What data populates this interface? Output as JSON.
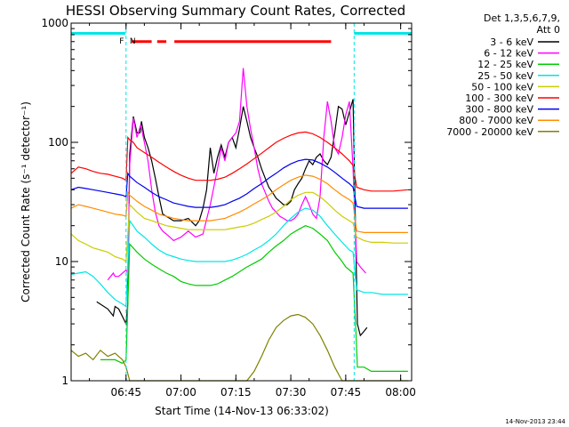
{
  "chart_data": {
    "type": "line",
    "title": "HESSI Observing Summary Count Rates, Corrected",
    "xlabel": "Start Time (14-Nov-13 06:33:02)",
    "ylabel": "Corrected Count Rate (s⁻¹ detector⁻¹)",
    "yscale": "log",
    "ylim": [
      1,
      1000
    ],
    "xlim_minutes": [
      -10.0,
      83.0
    ],
    "x_unit": "minutes after 06:40 UT",
    "xticks": [
      {
        "label": "06:45",
        "minutes": 5
      },
      {
        "label": "07:00",
        "minutes": 20
      },
      {
        "label": "07:15",
        "minutes": 35
      },
      {
        "label": "07:30",
        "minutes": 50
      },
      {
        "label": "07:45",
        "minutes": 65
      },
      {
        "label": "08:00",
        "minutes": 80
      }
    ],
    "yticks": [
      {
        "label": "1",
        "value": 1
      },
      {
        "label": "10",
        "value": 10
      },
      {
        "label": "100",
        "value": 100
      },
      {
        "label": "1000",
        "value": 1000
      }
    ],
    "grid": false,
    "legend_position": "right",
    "legend_header": [
      "Det 1,3,5,6,7,9,",
      "Att 0"
    ],
    "series": [
      {
        "name": "3 - 6 keV",
        "color": "#000000",
        "x": [
          -3,
          0,
          1.5,
          2,
          3,
          5,
          5.5,
          6,
          7,
          8,
          8.8,
          9.2,
          10,
          11,
          12,
          13,
          14,
          15,
          16,
          18,
          19,
          20,
          22,
          24,
          25,
          26,
          27,
          28,
          29,
          30,
          31,
          32,
          33,
          34,
          35,
          36,
          37,
          38,
          39,
          40,
          41,
          42,
          43,
          44,
          45,
          46,
          47,
          48,
          49,
          50,
          51,
          52,
          53,
          54,
          55,
          56,
          57,
          58,
          59,
          60,
          61,
          62,
          63,
          64,
          65,
          66,
          67,
          67.8,
          68.2,
          69,
          70,
          70.8
        ],
        "y": [
          4.6,
          4.0,
          3.5,
          4.2,
          4.0,
          3.0,
          4.5,
          80,
          165,
          120,
          120,
          150,
          110,
          90,
          70,
          50,
          35,
          25,
          24,
          22,
          22,
          22,
          23,
          20,
          22,
          28,
          40,
          90,
          55,
          75,
          95,
          75,
          100,
          110,
          90,
          130,
          200,
          150,
          110,
          90,
          75,
          60,
          50,
          42,
          38,
          34,
          32,
          30,
          30,
          32,
          40,
          45,
          50,
          60,
          70,
          65,
          75,
          80,
          70,
          65,
          75,
          120,
          200,
          190,
          140,
          180,
          230,
          12,
          3.0,
          2.4,
          2.6,
          2.8
        ]
      },
      {
        "name": "6 - 12 keV",
        "color": "#ff00ff",
        "x": [
          0,
          1.5,
          2,
          3,
          5,
          5.5,
          6,
          7,
          8,
          9,
          10,
          11,
          12,
          13,
          14,
          15,
          16,
          18,
          20,
          22,
          24,
          26,
          28,
          30,
          31,
          32,
          33,
          34,
          35,
          36,
          37,
          38,
          39,
          40,
          41,
          42,
          43,
          44,
          45,
          46,
          47,
          48,
          49,
          50,
          51,
          52,
          53,
          54,
          55,
          56,
          57,
          58,
          59,
          60,
          61,
          62,
          63,
          64,
          65,
          66,
          67,
          68,
          69,
          70.5
        ],
        "y": [
          7.0,
          8.0,
          7.5,
          7.5,
          8.5,
          8.0,
          65,
          160,
          110,
          140,
          100,
          70,
          40,
          26,
          20,
          18,
          17,
          15,
          16,
          18,
          16,
          17,
          30,
          60,
          90,
          70,
          100,
          110,
          120,
          150,
          420,
          200,
          130,
          90,
          60,
          45,
          38,
          32,
          28,
          26,
          24,
          23,
          22,
          22,
          23,
          25,
          30,
          35,
          30,
          25,
          23,
          35,
          110,
          220,
          150,
          90,
          80,
          110,
          170,
          220,
          60,
          10,
          9,
          8
        ]
      },
      {
        "name": "12 - 25 keV",
        "color": "#00cc00",
        "x": [
          -2,
          0,
          2,
          4,
          5,
          6,
          8,
          10,
          12,
          14,
          16,
          18,
          20,
          22,
          24,
          26,
          28,
          30,
          32,
          34,
          36,
          38,
          40,
          42,
          44,
          46,
          48,
          50,
          52,
          54,
          56,
          58,
          60,
          62,
          64,
          65,
          66,
          67,
          67.8,
          68.2,
          70,
          72,
          75,
          78,
          82
        ],
        "y": [
          1.5,
          1.5,
          1.5,
          1.4,
          1.5,
          14,
          12,
          10.5,
          9.5,
          8.7,
          8.0,
          7.5,
          6.8,
          6.5,
          6.3,
          6.3,
          6.3,
          6.5,
          7.0,
          7.5,
          8.2,
          9.0,
          9.7,
          10.5,
          12,
          13.5,
          15,
          17,
          18.5,
          20,
          19,
          17,
          15,
          12,
          10,
          9,
          8.5,
          8,
          2.5,
          1.3,
          1.3,
          1.2,
          1.2,
          1.2,
          1.2
        ]
      },
      {
        "name": "25 - 50 keV",
        "color": "#00e5e5",
        "x": [
          -10,
          -8,
          -6,
          -4,
          -2,
          0,
          2,
          4,
          5,
          6,
          8,
          10,
          12,
          14,
          16,
          18,
          20,
          22,
          24,
          26,
          28,
          30,
          32,
          34,
          36,
          38,
          40,
          42,
          44,
          46,
          48,
          50,
          52,
          54,
          56,
          58,
          60,
          62,
          64,
          66,
          67,
          68,
          70,
          72,
          75,
          78,
          82
        ],
        "y": [
          7.8,
          8.0,
          8.2,
          7.5,
          6.5,
          5.5,
          4.8,
          4.4,
          4.2,
          22,
          18,
          16,
          14,
          12.5,
          11.5,
          11,
          10.5,
          10.2,
          10,
          10,
          10,
          10,
          10,
          10.3,
          10.8,
          11.5,
          12.5,
          13.5,
          15,
          17,
          20,
          23,
          26,
          28,
          27,
          24,
          20,
          17,
          14.5,
          12.5,
          12,
          5.8,
          5.5,
          5.5,
          5.3,
          5.3,
          5.3
        ]
      },
      {
        "name": "50 - 100 keV",
        "color": "#cccc00",
        "x": [
          -10,
          -8,
          -6,
          -4,
          -2,
          0,
          2,
          4,
          5,
          6,
          8,
          10,
          12,
          14,
          16,
          18,
          20,
          22,
          24,
          26,
          28,
          30,
          32,
          34,
          36,
          38,
          40,
          42,
          44,
          46,
          48,
          50,
          52,
          54,
          56,
          58,
          60,
          62,
          64,
          66,
          67,
          68,
          70,
          72,
          75,
          78,
          82
        ],
        "y": [
          17,
          15,
          14,
          13,
          12.5,
          12,
          11,
          10.5,
          10,
          30,
          26,
          23,
          22,
          21,
          20,
          19.5,
          19,
          18.5,
          18.5,
          18.5,
          18.5,
          18.5,
          18.5,
          19,
          19.5,
          20,
          21,
          22.5,
          24,
          26,
          29,
          33,
          36,
          38,
          38,
          35,
          31,
          27,
          24,
          22,
          21,
          16,
          15,
          14.5,
          14.5,
          14.3,
          14.3
        ]
      },
      {
        "name": "100 - 300 keV",
        "color": "#ff0000",
        "x": [
          -10,
          -8,
          -6,
          -4,
          -2,
          0,
          2,
          4,
          5,
          5.5,
          6,
          7,
          8,
          10,
          12,
          14,
          16,
          18,
          20,
          22,
          24,
          26,
          28,
          30,
          32,
          34,
          36,
          38,
          40,
          42,
          44,
          46,
          48,
          50,
          52,
          54,
          56,
          58,
          60,
          62,
          64,
          66,
          67,
          68,
          70,
          72,
          75,
          78,
          82
        ],
        "y": [
          55,
          62,
          60,
          57,
          55,
          54,
          52,
          50,
          48,
          110,
          105,
          100,
          90,
          82,
          75,
          68,
          62,
          57,
          53,
          50,
          48,
          48,
          48,
          49,
          51,
          55,
          60,
          66,
          73,
          81,
          90,
          100,
          108,
          115,
          120,
          122,
          118,
          110,
          100,
          90,
          80,
          70,
          64,
          42,
          40,
          39,
          39,
          39,
          40
        ]
      },
      {
        "name": "300 - 800 keV",
        "color": "#0000ee",
        "x": [
          -10,
          -8,
          -6,
          -4,
          -2,
          0,
          2,
          4,
          5,
          5.5,
          6,
          8,
          10,
          12,
          14,
          16,
          18,
          20,
          22,
          24,
          26,
          28,
          30,
          32,
          34,
          36,
          38,
          40,
          42,
          44,
          46,
          48,
          50,
          52,
          54,
          56,
          58,
          60,
          62,
          64,
          66,
          67,
          68,
          70,
          72,
          75,
          78,
          82
        ],
        "y": [
          40,
          42,
          41,
          40,
          39,
          38,
          37,
          36,
          35,
          55,
          52,
          46,
          42,
          38,
          35,
          33,
          31,
          30,
          29,
          28.5,
          28.5,
          28.5,
          29,
          30,
          32,
          34,
          37,
          41,
          45,
          50,
          55,
          61,
          66,
          70,
          72,
          71,
          67,
          62,
          56,
          50,
          45,
          42,
          29,
          28,
          28,
          28,
          28,
          28
        ]
      },
      {
        "name": "800 - 7000 keV",
        "color": "#ff8c00",
        "x": [
          -10,
          -8,
          -6,
          -4,
          -2,
          0,
          2,
          4,
          5,
          5.5,
          6,
          8,
          10,
          12,
          14,
          16,
          18,
          20,
          22,
          24,
          26,
          28,
          30,
          32,
          34,
          36,
          38,
          40,
          42,
          44,
          46,
          48,
          50,
          52,
          54,
          56,
          58,
          60,
          62,
          64,
          66,
          67,
          68,
          70,
          72,
          75,
          78,
          82
        ],
        "y": [
          28,
          30,
          29,
          28,
          27,
          26,
          25,
          24.5,
          24,
          38,
          36,
          32,
          29,
          27,
          25,
          24,
          23,
          22.5,
          22,
          22,
          22,
          22,
          22.5,
          23,
          24.5,
          26,
          28,
          30.5,
          33,
          36,
          40,
          44,
          48,
          51,
          53,
          52,
          49,
          45,
          40,
          36,
          33,
          31,
          18,
          17.5,
          17.5,
          17.5,
          17.5,
          17.5
        ]
      },
      {
        "name": "7000 - 20000 keV",
        "color": "#808000",
        "x": [
          -10,
          -8,
          -6,
          -4,
          -2,
          0,
          2,
          4,
          5,
          6,
          10,
          14,
          18,
          22,
          26,
          28,
          30,
          32,
          34,
          36,
          38,
          40,
          42,
          44,
          46,
          48,
          50,
          52,
          54,
          56,
          58,
          60,
          62,
          64,
          66,
          68,
          70,
          75,
          80,
          82
        ],
        "y": [
          1.8,
          1.6,
          1.7,
          1.5,
          1.8,
          1.6,
          1.7,
          1.5,
          1.3,
          1.0,
          1.0,
          1.0,
          1.0,
          1.0,
          1.0,
          1.0,
          1.0,
          1.0,
          1.0,
          1.0,
          1.0,
          1.2,
          1.6,
          2.2,
          2.8,
          3.2,
          3.5,
          3.6,
          3.4,
          3.0,
          2.4,
          1.8,
          1.3,
          1.0,
          1.0,
          1.0,
          1.0,
          1.0,
          1.0,
          1.0
        ]
      }
    ],
    "attenuator_state_bar": {
      "y_value": 820,
      "color": "#00e5e5",
      "segments_minutes": [
        [
          -10,
          4.8
        ],
        [
          67.3,
          83
        ]
      ]
    },
    "flare_flag_bar": {
      "y_value": 700,
      "color": "#ff0000",
      "segments_minutes": [
        [
          6.5,
          12
        ],
        [
          13.5,
          16
        ],
        [
          18.2,
          61
        ]
      ]
    },
    "flags": [
      {
        "label": "F",
        "color": "#ff0000",
        "minutes": 3.8
      },
      {
        "label": "N",
        "color": "#00e5e5",
        "minutes": 6.8
      }
    ],
    "night_boundaries_minutes": [
      5.0,
      67.3,
      83.0
    ],
    "boundary_color": "#00e5e5"
  },
  "timestamp": "14-Nov-2013 23:44"
}
